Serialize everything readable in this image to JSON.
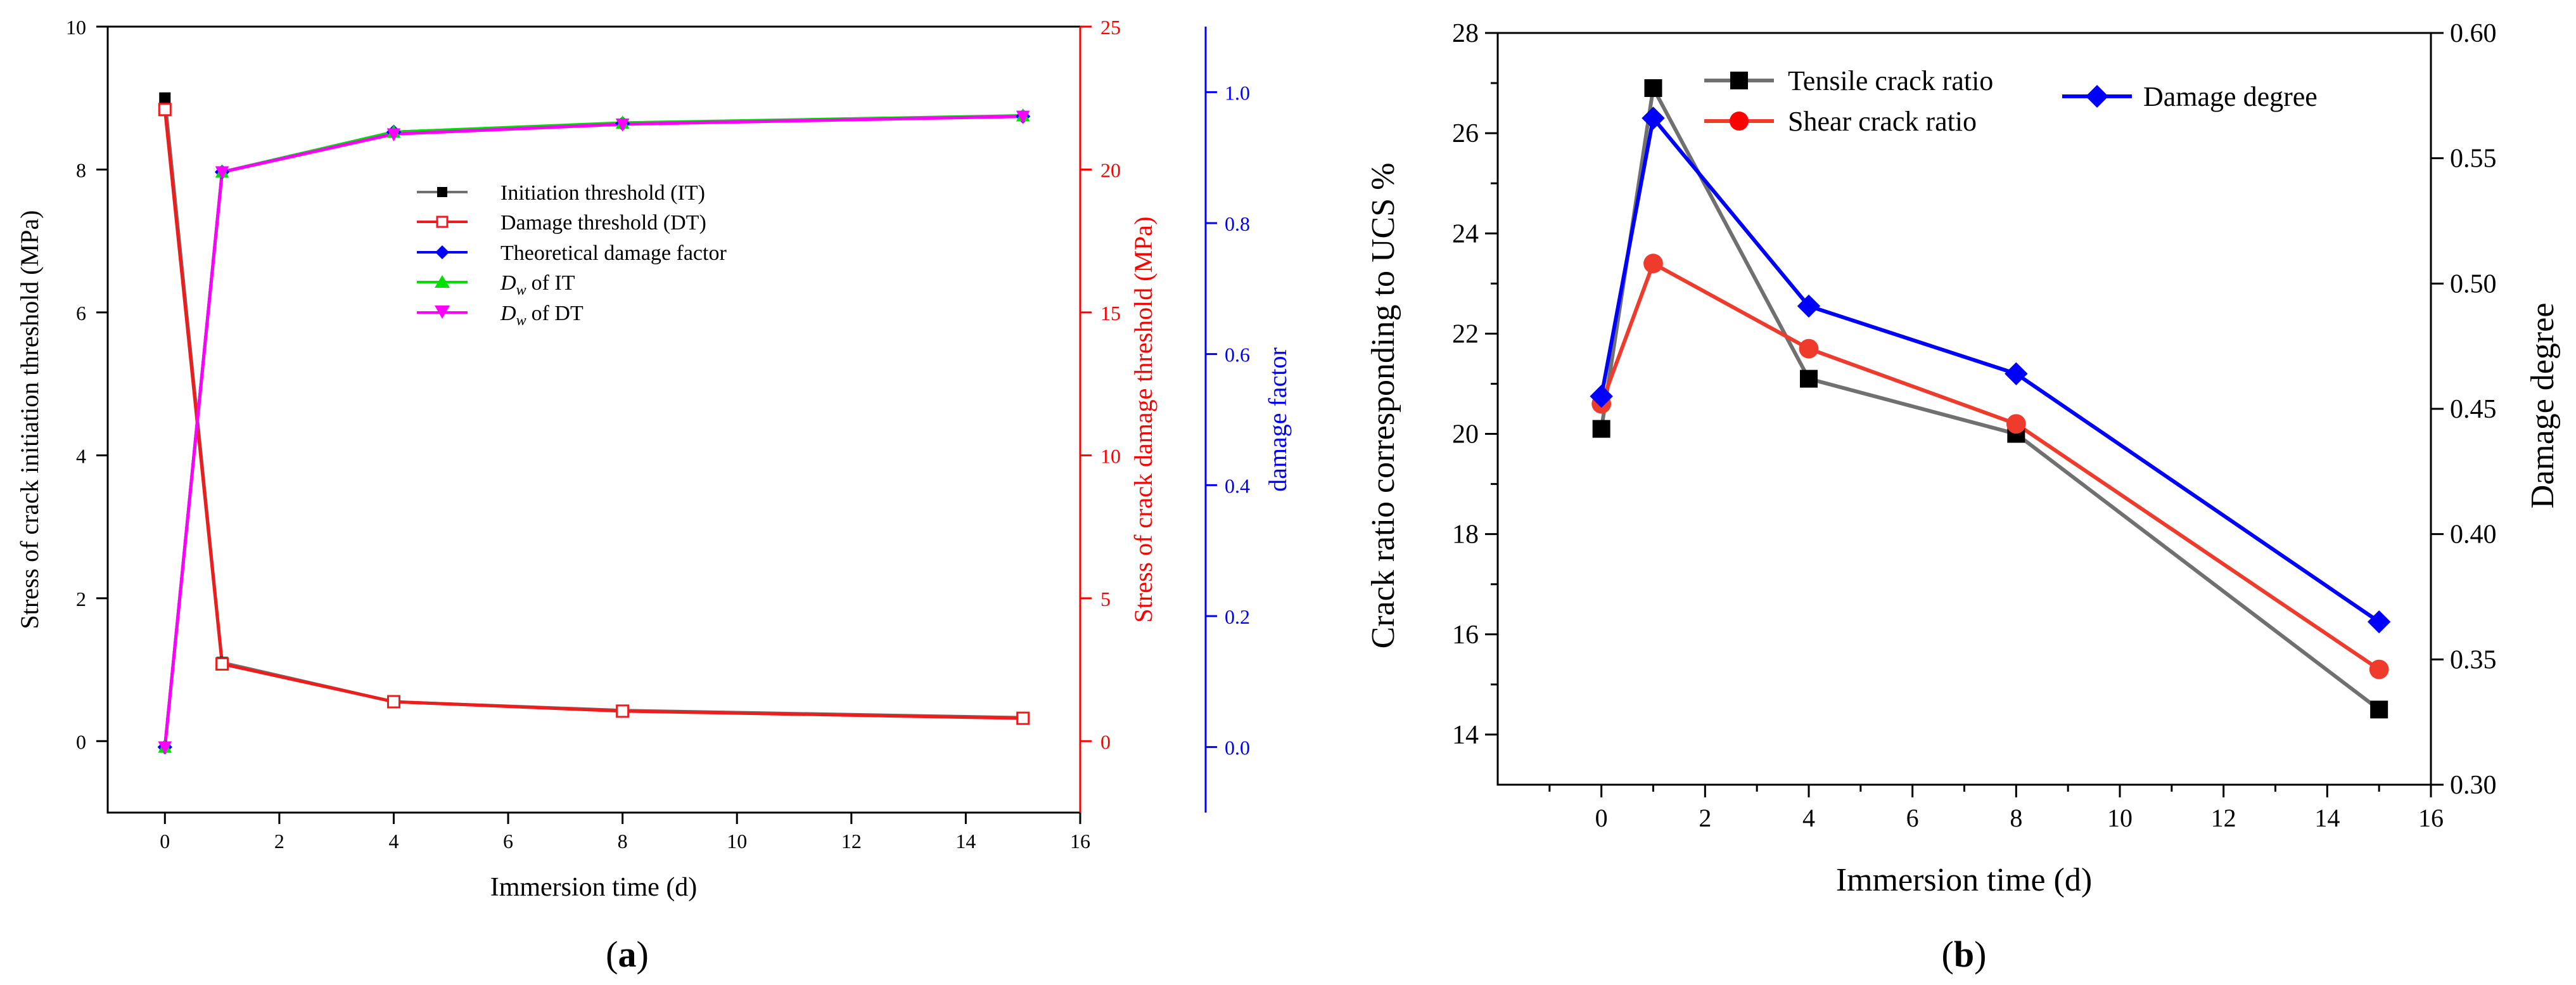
{
  "colors": {
    "black": "#000000",
    "gray_line": "#707070",
    "red": "#ff0000",
    "red_line": "#ef3b2c",
    "blue": "#0000ff",
    "green": "#00e000",
    "magenta": "#ff00ff"
  },
  "chart_data": [
    {
      "panel_label": "(a)",
      "panel_letter": "a",
      "type": "line",
      "xlabel": "Immersion time (d)",
      "xlim": [
        -1,
        16
      ],
      "xticks": [
        0,
        2,
        4,
        6,
        8,
        10,
        12,
        14,
        16
      ],
      "y_left": {
        "label": "Stress of crack initiation threshold (MPa)",
        "lim": [
          -1,
          10
        ],
        "ticks": [
          0,
          2,
          4,
          6,
          8,
          10
        ]
      },
      "y_right1": {
        "label": "Stress of crack damage threshold (MPa)",
        "lim": [
          -2.5,
          25
        ],
        "ticks": [
          0,
          5,
          10,
          15,
          20,
          25
        ]
      },
      "y_right2": {
        "label": "damage factor",
        "lim": [
          -0.1,
          1.1
        ],
        "ticks": [
          "0.0",
          "0.2",
          "0.4",
          "0.6",
          "0.8",
          "1.0"
        ]
      },
      "x": [
        0,
        1,
        4,
        8,
        15
      ],
      "series": [
        {
          "name": "Initiation threshold (IT)",
          "axis": "left",
          "color": "#707070",
          "marker": "square",
          "values": [
            9.0,
            1.1,
            0.55,
            0.43,
            0.33
          ]
        },
        {
          "name": "Damage threshold (DT)",
          "axis": "right1",
          "color": "#ef1c1c",
          "marker": "open-square",
          "values": [
            22.1,
            2.7,
            1.38,
            1.05,
            0.8
          ]
        },
        {
          "name": "Theoretical damage factor",
          "axis": "right2",
          "color": "#0000ff",
          "marker": "diamond",
          "values": [
            0.0,
            0.878,
            0.939,
            0.952,
            0.963
          ]
        },
        {
          "name": "of IT",
          "axis": "right2",
          "color": "#00e000",
          "marker": "triangle-up",
          "values": [
            0.0,
            0.878,
            0.939,
            0.953,
            0.964
          ]
        },
        {
          "name": "of DT",
          "axis": "right2",
          "color": "#ff00ff",
          "marker": "triangle-down",
          "values": [
            0.0,
            0.878,
            0.936,
            0.951,
            0.963
          ]
        }
      ],
      "legend_dw_symbol": "D",
      "legend_dw_sub": "w"
    },
    {
      "panel_label": "(b)",
      "panel_letter": "b",
      "type": "line",
      "xlabel": "Immersion time (d)",
      "xlim": [
        -2,
        16
      ],
      "xticks": [
        0,
        2,
        4,
        6,
        8,
        10,
        12,
        14,
        16
      ],
      "y_left": {
        "label": "Crack ratio corresponding to UCS %",
        "lim": [
          13,
          28
        ],
        "ticks": [
          14,
          16,
          18,
          20,
          22,
          24,
          26,
          28
        ]
      },
      "y_right": {
        "label": "Damage degree",
        "lim": [
          0.3,
          0.6
        ],
        "ticks": [
          "0.30",
          "0.35",
          "0.40",
          "0.45",
          "0.50",
          "0.55",
          "0.60"
        ]
      },
      "x": [
        0,
        1,
        4,
        8,
        15
      ],
      "series": [
        {
          "name": "Tensile crack ratio",
          "axis": "left",
          "color": "#707070",
          "marker": "square",
          "values": [
            20.1,
            26.9,
            21.1,
            20.0,
            14.5
          ]
        },
        {
          "name": "Shear crack ratio",
          "axis": "left",
          "color": "#ef3b2c",
          "marker": "circle",
          "values": [
            20.6,
            23.4,
            21.7,
            20.2,
            15.3
          ]
        },
        {
          "name": "Damage degree",
          "axis": "right",
          "color": "#0000ff",
          "marker": "diamond",
          "values": [
            0.455,
            0.566,
            0.491,
            0.464,
            0.365
          ]
        }
      ]
    }
  ]
}
